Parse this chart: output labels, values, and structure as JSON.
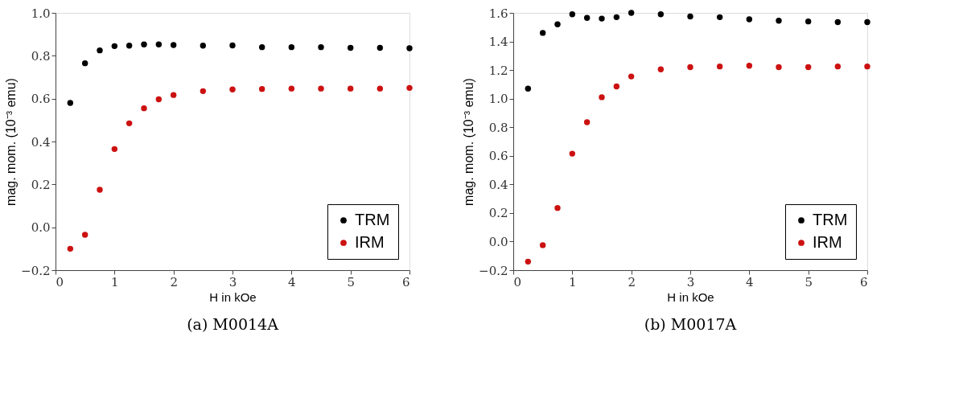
{
  "chart_data": [
    {
      "type": "scatter",
      "title": "(a) M0014A",
      "xlabel": "H in kOe",
      "ylabel": "mag. mom. (10⁻³ emu)",
      "x": [
        0.25,
        0.5,
        0.75,
        1,
        1.25,
        1.5,
        1.75,
        2,
        2.5,
        3,
        3.5,
        4,
        4.5,
        5,
        5.5,
        6
      ],
      "series": [
        {
          "name": "TRM",
          "color": "#000000",
          "values": [
            0.58,
            0.765,
            0.825,
            0.845,
            0.847,
            0.853,
            0.853,
            0.85,
            0.847,
            0.848,
            0.84,
            0.84,
            0.84,
            0.837,
            0.837,
            0.835
          ]
        },
        {
          "name": "IRM",
          "color": "#cc1111",
          "values": [
            -0.1,
            -0.035,
            0.175,
            0.365,
            0.485,
            0.555,
            0.597,
            0.617,
            0.635,
            0.643,
            0.645,
            0.647,
            0.647,
            0.647,
            0.647,
            0.65
          ]
        }
      ],
      "xlim": [
        0,
        6
      ],
      "xticks": [
        0,
        1,
        2,
        3,
        4,
        5,
        6
      ],
      "ylim": [
        -0.2,
        1.0
      ],
      "yticks": [
        {
          "value": -0.2,
          "label": "−0.2"
        },
        {
          "value": 0,
          "label": "0.0"
        },
        {
          "value": 0.2,
          "label": "0.2"
        },
        {
          "value": 0.4,
          "label": "0.4"
        },
        {
          "value": 0.6,
          "label": "0.6"
        },
        {
          "value": 0.8,
          "label": "0.8"
        },
        {
          "value": 1.0,
          "label": "1.0"
        }
      ],
      "grid": false,
      "legend": "bottom right",
      "marker": "circle"
    },
    {
      "type": "scatter",
      "title": "(b) M0017A",
      "xlabel": "H in kOe",
      "ylabel": "mag. mom. (10⁻³ emu)",
      "x": [
        0.25,
        0.5,
        0.75,
        1,
        1.25,
        1.5,
        1.75,
        2,
        2.5,
        3,
        3.5,
        4,
        4.5,
        5,
        5.5,
        6
      ],
      "series": [
        {
          "name": "TRM",
          "color": "#000000",
          "values": [
            1.07,
            1.46,
            1.52,
            1.59,
            1.565,
            1.56,
            1.57,
            1.6,
            1.59,
            1.575,
            1.57,
            1.555,
            1.545,
            1.54,
            1.535,
            1.535
          ]
        },
        {
          "name": "IRM",
          "color": "#cc1111",
          "values": [
            -0.14,
            -0.025,
            0.235,
            0.615,
            0.835,
            1.01,
            1.085,
            1.155,
            1.205,
            1.22,
            1.225,
            1.23,
            1.22,
            1.22,
            1.225,
            1.225
          ]
        }
      ],
      "xlim": [
        0,
        6
      ],
      "xticks": [
        0,
        1,
        2,
        3,
        4,
        5,
        6
      ],
      "ylim": [
        -0.2,
        1.6
      ],
      "yticks": [
        {
          "value": -0.2,
          "label": "−0.2"
        },
        {
          "value": 0,
          "label": "0.0"
        },
        {
          "value": 0.2,
          "label": "0.2"
        },
        {
          "value": 0.4,
          "label": "0.4"
        },
        {
          "value": 0.6,
          "label": "0.6"
        },
        {
          "value": 0.8,
          "label": "0.8"
        },
        {
          "value": 1.0,
          "label": "1.0"
        },
        {
          "value": 1.2,
          "label": "1.2"
        },
        {
          "value": 1.4,
          "label": "1.4"
        },
        {
          "value": 1.6,
          "label": "1.6"
        }
      ],
      "grid": false,
      "legend": "bottom right",
      "marker": "circle"
    }
  ]
}
